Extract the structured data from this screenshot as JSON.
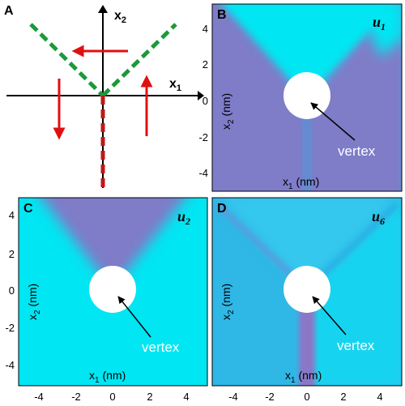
{
  "panels": {
    "A": {
      "letter": "A",
      "x_axis_label": "x",
      "x_axis_sub": "1",
      "y_axis_label": "x",
      "y_axis_sub": "2",
      "colors": {
        "domain_wall": "#1a9a3a",
        "arrow": "#e01010",
        "dislocation": "#c01818"
      }
    },
    "B": {
      "letter": "B",
      "field": "u",
      "field_sub": "1",
      "annotation": "vertex",
      "xlabel": "x1 (nm)",
      "ylabel": "x2 (nm)",
      "x_ticks": [
        "-4",
        "-2",
        "0",
        "2",
        "4"
      ],
      "y_ticks": [
        "4",
        "2",
        "0",
        "-2",
        "-4"
      ]
    },
    "C": {
      "letter": "C",
      "field": "u",
      "field_sub": "2",
      "annotation": "vertex",
      "xlabel": "x1 (nm)",
      "ylabel": "x2 (nm)",
      "x_ticks": [
        "-4",
        "-2",
        "0",
        "2",
        "4"
      ],
      "y_ticks": [
        "4",
        "2",
        "0",
        "-2",
        "-4"
      ]
    },
    "D": {
      "letter": "D",
      "field": "u",
      "field_sub": "6",
      "annotation": "vertex",
      "xlabel": "x1 (nm)",
      "ylabel": "x2 (nm)",
      "x_ticks": [
        "-4",
        "-2",
        "0",
        "2",
        "4"
      ],
      "y_ticks": [
        "4",
        "2",
        "0",
        "-2",
        "-4"
      ]
    }
  },
  "colors": {
    "cyan": "#00e6f2",
    "purple": "#7f7cc8",
    "blend": "#2fb7e6",
    "white": "#ffffff"
  }
}
